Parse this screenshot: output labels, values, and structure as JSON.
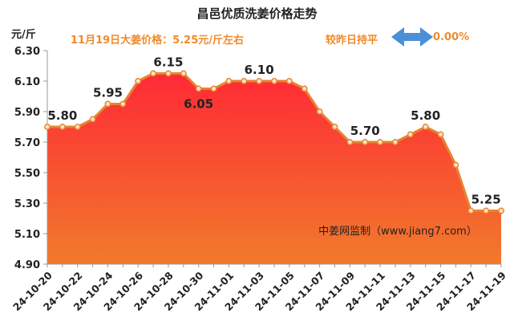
{
  "header": {
    "title": "昌邑优质洗姜价格走势",
    "unit": "元/斤",
    "price_note": "11月19日大姜价格：5.25元/斤左右",
    "trend_label": "较昨日持平",
    "change": "0.00%"
  },
  "watermark": "中姜网监制（www.jiang7.com）",
  "colors": {
    "line": "#e8832e",
    "fill_top": "#ff2a36",
    "fill_bottom": "#f17a2c",
    "arrow": "#4a90d9",
    "accent_text": "#f08a2a"
  },
  "chart_data": {
    "type": "area",
    "title": "昌邑优质洗姜价格走势",
    "ylabel": "元/斤",
    "ylim": [
      4.9,
      6.3
    ],
    "yticks": [
      "6.30",
      "6.10",
      "5.90",
      "5.70",
      "5.50",
      "5.30",
      "5.10",
      "4.90"
    ],
    "x": [
      "24-10-20",
      "24-10-21",
      "24-10-22",
      "24-10-23",
      "24-10-24",
      "24-10-25",
      "24-10-26",
      "24-10-27",
      "24-10-28",
      "24-10-29",
      "24-10-30",
      "24-10-31",
      "24-11-01",
      "24-11-02",
      "24-11-03",
      "24-11-04",
      "24-11-05",
      "24-11-06",
      "24-11-07",
      "24-11-08",
      "24-11-09",
      "24-11-10",
      "24-11-11",
      "24-11-12",
      "24-11-13",
      "24-11-14",
      "24-11-15",
      "24-11-16",
      "24-11-17",
      "24-11-18",
      "24-11-19"
    ],
    "xtick_labels": [
      "24-10-20",
      "24-10-22",
      "24-10-24",
      "24-10-26",
      "24-10-28",
      "24-10-30",
      "24-11-01",
      "24-11-03",
      "24-11-05",
      "24-11-07",
      "24-11-09",
      "24-11-11",
      "24-11-13",
      "24-11-15",
      "24-11-17",
      "24-11-19"
    ],
    "values": [
      5.8,
      5.8,
      5.8,
      5.85,
      5.95,
      5.95,
      6.1,
      6.15,
      6.15,
      6.15,
      6.05,
      6.05,
      6.1,
      6.1,
      6.1,
      6.1,
      6.1,
      6.05,
      5.9,
      5.8,
      5.7,
      5.7,
      5.7,
      5.7,
      5.75,
      5.8,
      5.75,
      5.55,
      5.25,
      5.25,
      5.25
    ],
    "data_labels": [
      {
        "index": 1,
        "text": "5.80"
      },
      {
        "index": 4,
        "text": "5.95"
      },
      {
        "index": 8,
        "text": "6.15"
      },
      {
        "index": 10,
        "text": "6.05",
        "below": true
      },
      {
        "index": 14,
        "text": "6.10"
      },
      {
        "index": 21,
        "text": "5.70"
      },
      {
        "index": 25,
        "text": "5.80"
      },
      {
        "index": 29,
        "text": "5.25"
      }
    ],
    "grid": false
  }
}
